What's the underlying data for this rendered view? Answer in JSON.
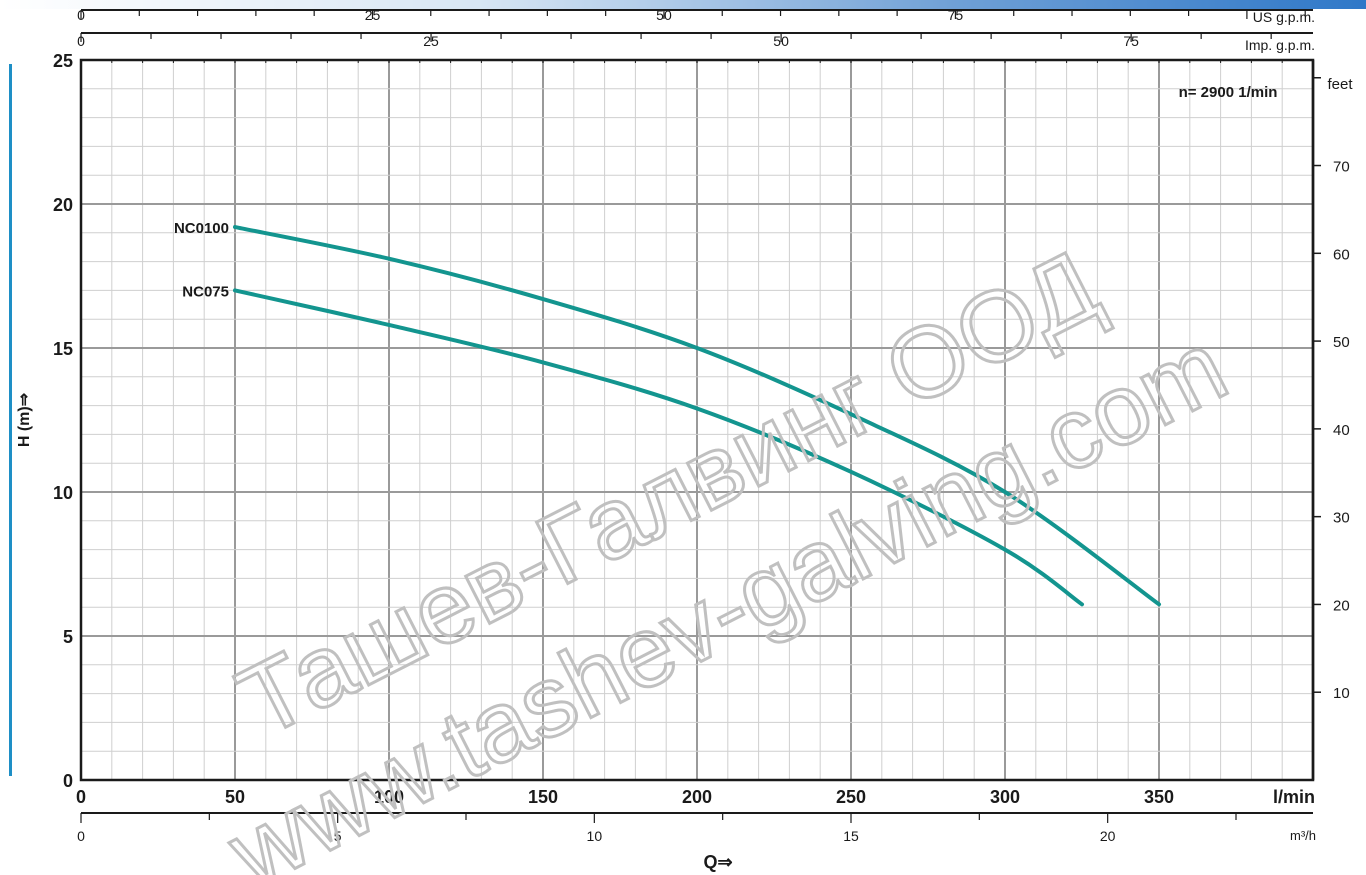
{
  "chart_data": {
    "type": "line",
    "x_unit": "l/min",
    "ylabel": "H (m)⇒",
    "xlabel": "Q⇒",
    "speed_label": "n= 2900  1/min",
    "xlim": [
      0,
      400
    ],
    "ylim": [
      0,
      25
    ],
    "grid": true,
    "x_ticks": [
      "0",
      "50",
      "100",
      "150",
      "200",
      "250",
      "300",
      "350"
    ],
    "y_ticks": [
      "0",
      "5",
      "10",
      "15",
      "20",
      "25"
    ],
    "right_axis": {
      "unit": "feet",
      "ticks": [
        "10",
        "20",
        "30",
        "40",
        "50",
        "60",
        "70"
      ]
    },
    "top_axes": [
      {
        "unit": "US g.p.m.",
        "ticks": [
          "0",
          "25",
          "50",
          "75"
        ]
      },
      {
        "unit": "Imp. g.p.m.",
        "ticks": [
          "0",
          "25",
          "50",
          "75"
        ]
      }
    ],
    "bottom_axis": {
      "unit": "m³/h",
      "ticks": [
        "0",
        "5",
        "10",
        "15",
        "20"
      ]
    },
    "series": [
      {
        "name": "NC0100",
        "x": [
          50,
          100,
          150,
          200,
          250,
          300,
          350
        ],
        "y": [
          19.2,
          18.1,
          16.7,
          15.0,
          12.7,
          10.0,
          6.1
        ]
      },
      {
        "name": "NC075",
        "x": [
          50,
          100,
          150,
          200,
          250,
          300,
          325
        ],
        "y": [
          17.0,
          15.8,
          14.5,
          12.9,
          10.7,
          8.0,
          6.1
        ]
      }
    ],
    "curve_color": "#13958f",
    "watermark_lines": [
      "Ташев-Галвинг ООД",
      "www.tashev-galving.com"
    ]
  }
}
